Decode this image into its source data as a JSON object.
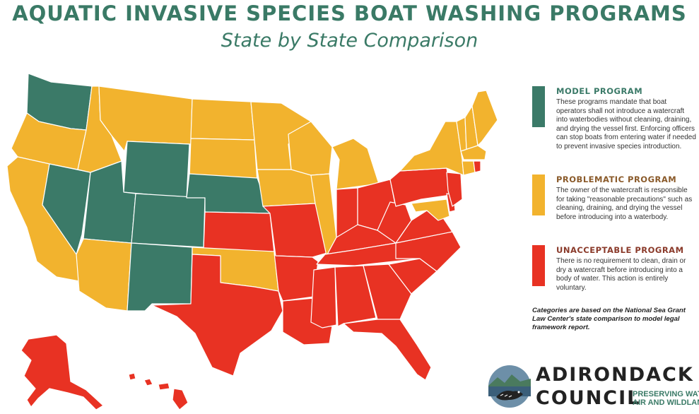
{
  "header": {
    "title": "AQUATIC INVASIVE SPECIES BOAT WASHING PROGRAMS",
    "subtitle": "State by State Comparison"
  },
  "colors": {
    "model": "#3b7a68",
    "problematic": "#f2b32e",
    "unacceptable": "#e83223",
    "accent": "#3a7a66"
  },
  "legend": {
    "model": {
      "label": "MODEL PROGRAM",
      "description": "These programs mandate that boat operators shall not introduce a watercraft into waterbodies without cleaning, draining, and drying the vessel first. Enforcing officers can stop boats from entering water if needed to prevent invasive species introduction."
    },
    "problematic": {
      "label": "PROBLEMATIC PROGRAM",
      "description": "The owner of the watercraft is responsible for taking \"reasonable precautions\" such as cleaning, draining, and drying the vessel before introducing into a waterbody."
    },
    "unacceptable": {
      "label": "UNACCEPTABLE PROGRAM",
      "description": "There is no requirement to clean, drain or dry a watercraft before introducing into a body of water. This action is entirely voluntary."
    }
  },
  "note": "Categories are based on the National Sea Grant Law Center's state comparison to model legal framework report.",
  "logo": {
    "name_line1": "ADIRONDACK",
    "name_line2": "COUNCIL",
    "tagline_line1": "PRESERVING WATER,",
    "tagline_line2": "AIR AND WILDLANDS"
  },
  "map": {
    "model_states": [
      "Washington",
      "Nevada",
      "Utah",
      "Wyoming",
      "Colorado",
      "Nebraska",
      "New Mexico"
    ],
    "problematic_states": [
      "Oregon",
      "California",
      "Idaho",
      "Montana",
      "North Dakota",
      "South Dakota",
      "Minnesota",
      "Iowa",
      "Wisconsin",
      "Illinois",
      "Michigan",
      "Arizona",
      "Oklahoma",
      "New York",
      "Vermont",
      "New Hampshire",
      "Maine",
      "Massachusetts",
      "Connecticut",
      "Maryland"
    ],
    "unacceptable_states": [
      "Kansas",
      "Texas",
      "Missouri",
      "Arkansas",
      "Louisiana",
      "Mississippi",
      "Alabama",
      "Georgia",
      "Florida",
      "South Carolina",
      "North Carolina",
      "Tennessee",
      "Kentucky",
      "Indiana",
      "Ohio",
      "West Virginia",
      "Virginia",
      "Pennsylvania",
      "New Jersey",
      "Delaware",
      "Rhode Island",
      "Alaska",
      "Hawaii"
    ]
  }
}
